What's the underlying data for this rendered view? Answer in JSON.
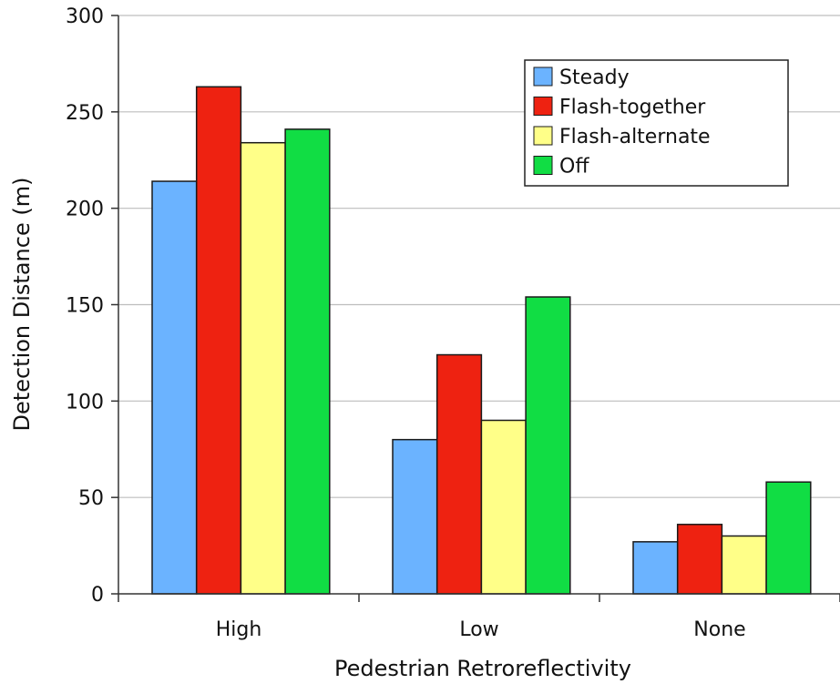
{
  "chart_data": {
    "type": "bar",
    "title": "",
    "xlabel": "Pedestrian Retroreflectivity",
    "ylabel": "Detection Distance (m)",
    "ylim": [
      0,
      300
    ],
    "yticks": [
      0,
      50,
      100,
      150,
      200,
      250,
      300
    ],
    "grid": true,
    "legend_position": "top-right",
    "categories": [
      "High",
      "Low",
      "None"
    ],
    "series": [
      {
        "name": "Steady",
        "color": "#6BB3FF",
        "values": [
          214,
          80,
          27
        ]
      },
      {
        "name": "Flash-together",
        "color": "#EE2211",
        "values": [
          263,
          124,
          36
        ]
      },
      {
        "name": "Flash-alternate",
        "color": "#FFFF88",
        "values": [
          234,
          90,
          30
        ]
      },
      {
        "name": "Off",
        "color": "#11DD44",
        "values": [
          241,
          154,
          58
        ]
      }
    ]
  }
}
